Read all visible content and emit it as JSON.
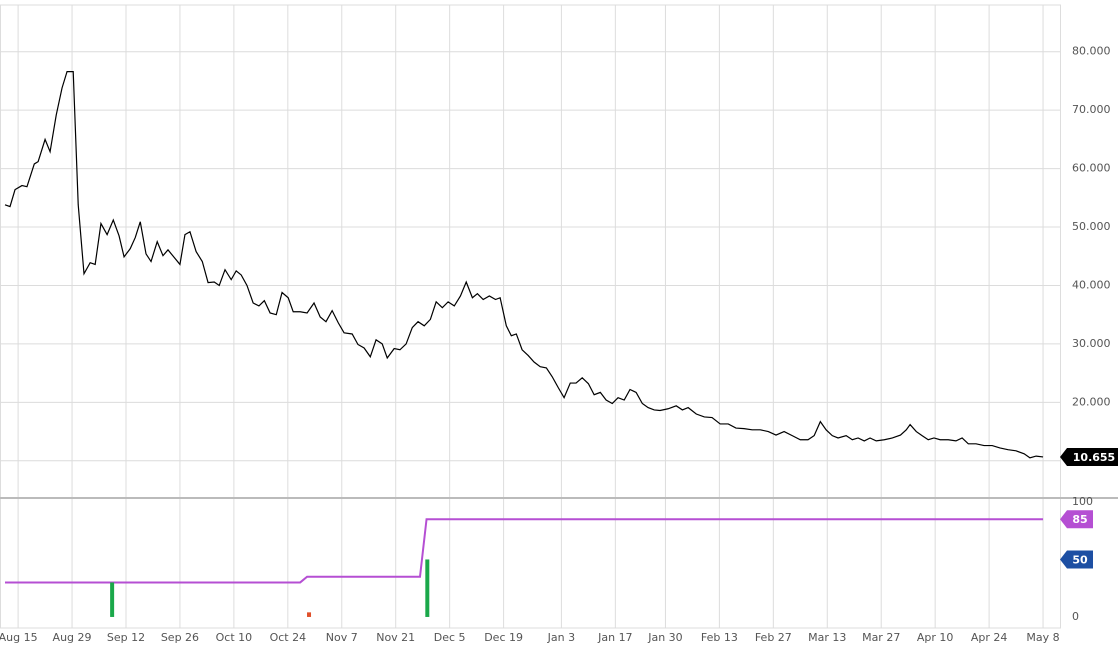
{
  "chart_data": [
    {
      "type": "line",
      "color": "#000000",
      "x": [
        -3.4,
        -2.1,
        -0.8,
        1.0,
        2.3,
        4.2,
        5.2,
        7.0,
        8.3,
        9.9,
        11.4,
        12.7,
        14.3,
        15.6,
        17.1,
        18.7,
        20.0,
        21.5,
        23.1,
        24.7,
        26.2,
        27.5,
        29.1,
        30.4,
        31.7,
        33.2,
        34.5,
        36.1,
        37.6,
        38.9,
        40.5,
        42.0,
        43.3,
        44.6,
        46.2,
        47.8,
        49.3,
        50.9,
        52.2,
        53.7,
        55.3,
        56.6,
        57.9,
        59.4,
        61.0,
        62.5,
        63.9,
        65.4,
        67.0,
        68.5,
        70.1,
        71.4,
        73.2,
        75.0,
        76.8,
        78.4,
        79.9,
        81.5,
        83.1,
        84.6,
        86.7,
        88.2,
        89.8,
        91.4,
        92.9,
        94.5,
        95.8,
        97.6,
        99.1,
        100.7,
        102.3,
        103.8,
        105.4,
        107.0,
        108.5,
        110.1,
        111.6,
        113.2,
        114.8,
        116.3,
        117.9,
        119.2,
        120.7,
        122.3,
        123.9,
        125.1,
        126.7,
        128.0,
        129.3,
        130.8,
        132.4,
        133.9,
        135.5,
        137.1,
        138.6,
        140.2,
        141.7,
        143.3,
        144.8,
        146.4,
        148.0,
        149.5,
        151.1,
        152.6,
        154.2,
        155.7,
        157.3,
        158.8,
        160.4,
        162.0,
        163.5,
        165.1,
        166.6,
        168.7,
        170.8,
        172.4,
        173.9,
        176.0,
        178.1,
        180.1,
        182.2,
        184.3,
        186.3,
        188.4,
        190.5,
        192.6,
        194.7,
        196.7,
        198.8,
        200.9,
        203.0,
        205.0,
        206.6,
        208.2,
        209.7,
        211.3,
        212.8,
        214.9,
        216.5,
        218.0,
        219.6,
        221.1,
        222.7,
        224.8,
        226.9,
        229.0,
        230.5,
        231.5,
        233.1,
        234.6,
        236.2,
        237.7,
        239.3,
        241.4,
        243.4,
        245.0,
        246.6,
        248.6,
        250.7,
        252.8,
        254.8,
        256.9,
        259.0,
        261.1,
        262.6,
        264.2,
        266.0
      ],
      "values": [
        53.8,
        53.5,
        56.4,
        57.1,
        56.9,
        60.8,
        61.2,
        65,
        62.9,
        69.2,
        73.8,
        76.6,
        76.6,
        53.8,
        42,
        43.9,
        43.6,
        50.6,
        48.7,
        51.2,
        48.5,
        44.9,
        46.3,
        48.2,
        50.9,
        45.4,
        44.1,
        47.5,
        45.1,
        46.1,
        44.8,
        43.6,
        48.7,
        49.2,
        45.8,
        44.1,
        40.5,
        40.6,
        40,
        42.7,
        41,
        42.5,
        41.8,
        40,
        37,
        36.5,
        37.4,
        35.3,
        35,
        38.8,
        37.9,
        35.5,
        35.5,
        35.3,
        37,
        34.6,
        33.8,
        35.7,
        33.6,
        31.9,
        31.7,
        29.9,
        29.3,
        27.8,
        30.7,
        30,
        27.6,
        29.2,
        29,
        30,
        32.8,
        33.8,
        33.1,
        34.2,
        37.2,
        36.2,
        37.2,
        36.5,
        38.2,
        40.6,
        37.9,
        38.6,
        37.6,
        38.2,
        37.6,
        37.9,
        33.1,
        31.4,
        31.7,
        29,
        28,
        26.9,
        26.1,
        25.9,
        24.4,
        22.5,
        20.8,
        23.3,
        23.3,
        24.2,
        23.2,
        21.3,
        21.7,
        20.4,
        19.8,
        20.8,
        20.4,
        22.2,
        21.7,
        19.8,
        19.1,
        18.7,
        18.6,
        18.9,
        19.4,
        18.7,
        19.1,
        18,
        17.5,
        17.4,
        16.3,
        16.3,
        15.6,
        15.5,
        15.3,
        15.3,
        15,
        14.4,
        15,
        14.3,
        13.6,
        13.6,
        14.3,
        16.7,
        15.3,
        14.3,
        13.9,
        14.3,
        13.6,
        13.9,
        13.4,
        13.9,
        13.4,
        13.6,
        13.9,
        14.4,
        15.3,
        16.2,
        15,
        14.3,
        13.6,
        13.9,
        13.6,
        13.6,
        13.4,
        13.9,
        12.9,
        12.9,
        12.6,
        12.6,
        12.2,
        11.9,
        11.7,
        11.2,
        10.5,
        10.8,
        10.655
      ],
      "xlim": [
        -4.7,
        270.4
      ],
      "ylim": [
        3.8,
        88
      ],
      "xticks": [
        {
          "value": 0,
          "label": "Aug 15"
        },
        {
          "value": 14,
          "label": "Aug 29"
        },
        {
          "value": 28,
          "label": "Sep 12"
        },
        {
          "value": 42,
          "label": "Sep 26"
        },
        {
          "value": 56,
          "label": "Oct 10"
        },
        {
          "value": 70,
          "label": "Oct 24"
        },
        {
          "value": 84,
          "label": "Nov 7"
        },
        {
          "value": 98,
          "label": "Nov 21"
        },
        {
          "value": 112,
          "label": "Dec 5"
        },
        {
          "value": 126,
          "label": "Dec 19"
        },
        {
          "value": 141,
          "label": "Jan 3"
        },
        {
          "value": 155,
          "label": "Jan 17"
        },
        {
          "value": 168,
          "label": "Jan 30"
        },
        {
          "value": 182,
          "label": "Feb 13"
        },
        {
          "value": 196,
          "label": "Feb 27"
        },
        {
          "value": 210,
          "label": "Mar 13"
        },
        {
          "value": 224,
          "label": "Mar 27"
        },
        {
          "value": 238,
          "label": "Apr 10"
        },
        {
          "value": 252,
          "label": "Apr 24"
        },
        {
          "value": 266,
          "label": "May 8"
        }
      ],
      "yticks": [
        {
          "value": 10,
          "label": "10.000"
        },
        {
          "value": 20,
          "label": "20.000"
        },
        {
          "value": 30,
          "label": "30.000"
        },
        {
          "value": 40,
          "label": "40.000"
        },
        {
          "value": 50,
          "label": "50.000"
        },
        {
          "value": 60,
          "label": "60.000"
        },
        {
          "value": 70,
          "label": "70.000"
        },
        {
          "value": 80,
          "label": "80.000"
        }
      ],
      "grid": true
    },
    {
      "type": "indicator",
      "series": [
        {
          "kind": "line",
          "color": "#b54fd3",
          "x": [
            -3.4,
            73.2,
            75.0,
            104.3,
            106.0,
            266.0
          ],
          "values": [
            30,
            30,
            35,
            35,
            85,
            85
          ]
        },
        {
          "kind": "bar",
          "x": [
            24.4,
            75.5,
            106.2
          ],
          "values": [
            30,
            4,
            50
          ],
          "colors": [
            "#1aa84a",
            "#e0502a",
            "#1aa84a"
          ]
        }
      ],
      "levels": [
        {
          "value": 50,
          "color": "#1d4fa3"
        }
      ],
      "xlim": [
        -4.7,
        270.4
      ],
      "ylim": [
        -9.6,
        104.3
      ],
      "yticks": [
        0,
        100
      ]
    }
  ]
}
